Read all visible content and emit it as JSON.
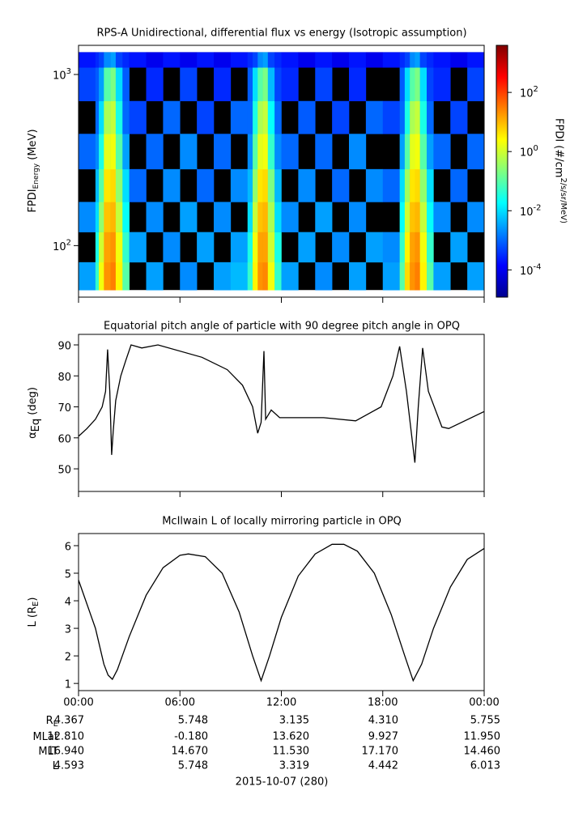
{
  "chart_data": [
    {
      "type": "heatmap",
      "title": "RPS-A Unidirectional, differential flux vs energy (Isotropic assumption)",
      "ylabel": {
        "text": "FPDI",
        "sub": "Energy",
        "after": " (MeV)"
      },
      "zlabel": "FPDI (#/cm^2/s/sr/MeV)",
      "xlim": [
        0,
        24
      ],
      "xticks": [
        0,
        6,
        12,
        18,
        24
      ],
      "ylim": [
        50,
        1480
      ],
      "ylog": true,
      "yticks": [
        {
          "value": 100,
          "label": "10^2"
        },
        {
          "value": 1000,
          "label": "10^3"
        }
      ],
      "zlim": [
        1.2e-05,
        3900
      ],
      "zlog": true,
      "zticks": [
        {
          "value": 0.0001,
          "label": "10^-4"
        },
        {
          "value": 0.01,
          "label": "10^-2"
        },
        {
          "value": 1,
          "label": "10^0"
        },
        {
          "value": 100,
          "label": "10^2"
        }
      ],
      "x_edges": [
        0,
        1,
        1.2,
        1.5,
        1.9,
        2.2,
        2.6,
        3,
        4,
        5,
        6,
        7,
        8,
        9,
        10,
        10.3,
        10.6,
        10.9,
        11.2,
        11.6,
        12,
        13,
        14,
        15,
        16,
        17,
        18,
        19,
        19.3,
        19.6,
        19.9,
        20.2,
        20.6,
        21,
        22,
        23,
        24
      ],
      "y_edges": [
        55,
        80,
        120,
        180,
        280,
        450,
        700,
        1100,
        1350
      ],
      "z": [
        [
          0.003,
          0.05,
          2,
          20,
          30,
          3,
          0.1,
          null,
          0.003,
          null,
          0.002,
          null,
          0.003,
          0.005,
          0.05,
          3,
          20,
          25,
          2,
          0.05,
          0.003,
          null,
          0.002,
          null,
          0.003,
          null,
          0.003,
          0.1,
          5,
          20,
          30,
          3,
          0.1,
          0.003,
          null,
          0.003
        ],
        [
          null,
          0.03,
          1,
          15,
          20,
          2,
          0.05,
          0.003,
          null,
          0.002,
          null,
          0.003,
          null,
          0.003,
          0.03,
          2,
          15,
          15,
          1,
          0.03,
          null,
          0.003,
          null,
          0.002,
          null,
          0.003,
          0.002,
          0.05,
          3,
          15,
          20,
          2,
          0.05,
          null,
          0.003,
          null
        ],
        [
          0.002,
          0.01,
          0.3,
          8,
          10,
          0.8,
          0.02,
          null,
          0.002,
          null,
          0.003,
          null,
          0.002,
          null,
          0.01,
          0.8,
          8,
          10,
          0.5,
          0.01,
          0.002,
          null,
          0.003,
          null,
          0.002,
          null,
          null,
          0.02,
          1,
          8,
          10,
          0.8,
          0.02,
          0.002,
          null,
          0.002
        ],
        [
          null,
          0.005,
          0.1,
          4,
          5,
          0.3,
          0.01,
          0.001,
          null,
          0.002,
          null,
          0.001,
          null,
          0.002,
          0.005,
          0.3,
          4,
          5,
          0.2,
          0.005,
          null,
          0.002,
          null,
          0.001,
          null,
          0.002,
          0.001,
          0.01,
          0.4,
          4,
          5,
          0.3,
          0.01,
          null,
          0.001,
          null
        ],
        [
          0.001,
          0.002,
          0.03,
          1.5,
          2,
          0.1,
          0.003,
          null,
          0.001,
          null,
          0.002,
          null,
          0.001,
          null,
          0.002,
          0.1,
          1.5,
          2,
          0.05,
          0.002,
          0.001,
          null,
          0.001,
          null,
          0.002,
          null,
          null,
          0.003,
          0.1,
          1.5,
          2,
          0.1,
          0.003,
          0.001,
          null,
          0.001
        ],
        [
          null,
          0.001,
          0.01,
          0.5,
          0.8,
          0.03,
          0.001,
          0.0005,
          null,
          0.001,
          null,
          0.0005,
          null,
          0.001,
          0.001,
          0.03,
          0.5,
          0.8,
          0.02,
          0.001,
          null,
          0.0008,
          null,
          0.0005,
          null,
          0.001,
          0.0005,
          0.001,
          0.03,
          0.5,
          0.8,
          0.03,
          0.001,
          null,
          0.0005,
          null
        ],
        [
          0.0005,
          0.0008,
          0.003,
          0.1,
          0.2,
          0.01,
          0.0008,
          null,
          0.0003,
          null,
          0.0005,
          null,
          0.0003,
          null,
          0.0008,
          0.01,
          0.1,
          0.2,
          0.005,
          0.0005,
          0.0003,
          null,
          0.0005,
          null,
          0.0003,
          null,
          null,
          0.0008,
          0.01,
          0.1,
          0.2,
          0.01,
          0.0005,
          0.0003,
          null,
          0.0005
        ],
        [
          0.0002,
          0.0003,
          0.0005,
          0.002,
          0.003,
          0.0005,
          0.0003,
          0.0002,
          0.0001,
          0.0002,
          0.0001,
          0.0002,
          0.0001,
          0.0002,
          0.0003,
          0.0005,
          0.002,
          0.003,
          0.0005,
          0.0003,
          0.0002,
          0.0001,
          0.0002,
          0.0001,
          0.0002,
          0.0001,
          0.0002,
          0.0003,
          0.0005,
          0.002,
          0.003,
          0.0005,
          0.0003,
          0.0002,
          0.0001,
          0.0002
        ]
      ]
    },
    {
      "type": "line",
      "title": "Equatorial pitch angle of particle with 90 degree pitch angle in OPQ",
      "ylabel": {
        "text": "α",
        "sub": "Eq",
        "after": " (deg)"
      },
      "xlim": [
        0,
        24
      ],
      "xticks": [
        0,
        6,
        12,
        18,
        24
      ],
      "ylim": [
        42.7,
        93.4
      ],
      "yticks": [
        50,
        60,
        70,
        80,
        90
      ],
      "color": "#000000",
      "x": [
        0,
        0.5,
        1,
        1.4,
        1.6,
        1.72,
        1.85,
        1.96,
        2.05,
        2.2,
        2.5,
        2.8,
        3.11,
        3.74,
        4.7,
        7.3,
        8.8,
        9.7,
        10.3,
        10.6,
        10.8,
        10.97,
        11.07,
        11.4,
        11.9,
        14.5,
        16.4,
        17.9,
        18.6,
        19,
        19.4,
        19.9,
        20.1,
        20.36,
        20.7,
        21.5,
        21.9,
        24
      ],
      "values": [
        60.5,
        63,
        66,
        70,
        75,
        88.5,
        75,
        54.5,
        62,
        72,
        80,
        85,
        90,
        89,
        90,
        86,
        82,
        77,
        70,
        61.5,
        65,
        88,
        66,
        69,
        66.5,
        66.5,
        65.5,
        70,
        80,
        89.5,
        75,
        52,
        70,
        89,
        75,
        63.5,
        63,
        68.5
      ]
    },
    {
      "type": "line",
      "title": "McIlwain L of locally mirroring particle in OPQ",
      "ylabel": {
        "text": "L (R",
        "sub": "E",
        "after": ")"
      },
      "xlim": [
        0,
        24
      ],
      "xticks": [
        {
          "value": 0,
          "label": "00:00"
        },
        {
          "value": 6,
          "label": "06:00"
        },
        {
          "value": 12,
          "label": "12:00"
        },
        {
          "value": 18,
          "label": "18:00"
        },
        {
          "value": 24,
          "label": "00:00"
        }
      ],
      "ylim": [
        0.74,
        6.44
      ],
      "yticks": [
        1,
        2,
        3,
        4,
        5,
        6
      ],
      "color": "#000000",
      "x": [
        0,
        1,
        1.5,
        1.75,
        2,
        2.3,
        3,
        4,
        5,
        6,
        6.5,
        7.5,
        8.5,
        9.5,
        10.3,
        10.8,
        11.3,
        12,
        13,
        14,
        15,
        15.7,
        16.5,
        17.5,
        18.5,
        19.3,
        19.8,
        20.3,
        21,
        22,
        23,
        24
      ],
      "values": [
        4.75,
        3,
        1.7,
        1.3,
        1.15,
        1.5,
        2.7,
        4.2,
        5.2,
        5.65,
        5.7,
        5.6,
        5,
        3.6,
        2,
        1.1,
        2,
        3.4,
        4.9,
        5.7,
        6.05,
        6.05,
        5.8,
        5,
        3.5,
        2,
        1.1,
        1.7,
        3,
        4.5,
        5.5,
        5.9
      ]
    }
  ],
  "ephemeris": {
    "rows": [
      {
        "label": "R",
        "sub": "E",
        "values": [
          "4.367",
          "5.748",
          "3.135",
          "4.310",
          "5.755"
        ]
      },
      {
        "label": "MLat",
        "values": [
          "12.810",
          "-0.180",
          "13.620",
          "9.927",
          "11.950"
        ]
      },
      {
        "label": "MLT",
        "values": [
          "16.940",
          "14.670",
          "11.530",
          "17.170",
          "14.460"
        ]
      },
      {
        "label": "L",
        "values": [
          "4.593",
          "5.748",
          "3.319",
          "4.442",
          "6.013"
        ]
      }
    ],
    "date": "2015-10-07 (280)"
  }
}
